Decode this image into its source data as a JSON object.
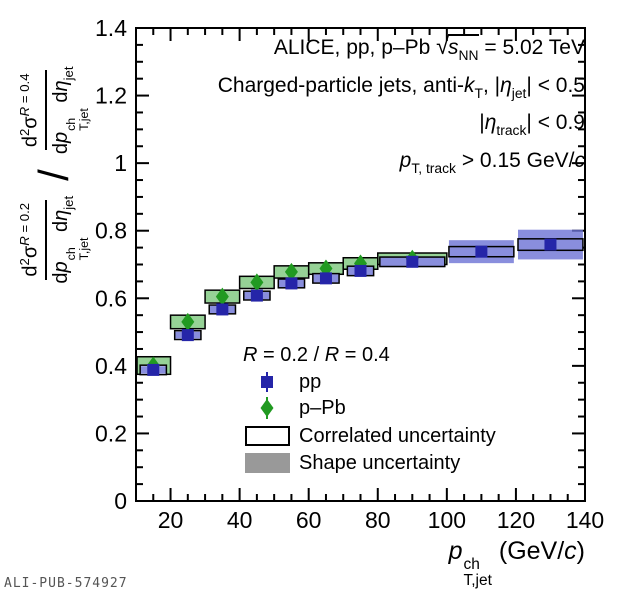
{
  "header": {
    "line1": {
      "pre": "ALICE, pp, p–Pb ",
      "sqrt": "√",
      "s": "s",
      "s_sub": "NN",
      "post": " = 5.02 TeV"
    },
    "line2": {
      "pre": "Charged-particle jets, anti-",
      "k": "k",
      "k_sub": "T",
      "mid": ", |",
      "eta": "η",
      "eta_sub": "jet",
      "post": "| < 0.5"
    },
    "line3": {
      "pre": "|",
      "eta": "η",
      "eta_sub": "track",
      "post": "| < 0.9"
    },
    "line4": {
      "p": "p",
      "p_sub": "T, track",
      "post": " > 0.15 GeV/",
      "c": "c"
    }
  },
  "legend": {
    "header": {
      "r1": "R",
      "mid1": " = 0.2 / ",
      "r2": "R",
      "mid2": " = 0.4"
    },
    "items": {
      "pp": "pp",
      "ppb": "p–Pb",
      "corr": "Correlated uncertainty",
      "shape": "Shape uncertainty"
    },
    "shape_swatch_color": "#999999"
  },
  "axes": {
    "x_label": {
      "p": "p",
      "sup": "ch",
      "sub": "T,jet",
      "unit_pre": " (GeV/",
      "c": "c",
      "unit_post": ")"
    },
    "y_label": {
      "slash": "/",
      "frac_r02": {
        "num_d": "d",
        "num_exp": "2",
        "num_sig": "σ",
        "num_sup_R": "R",
        "num_sup_rest": " = 0.2",
        "den_d": "d",
        "den_p": "p",
        "den_sup": "ch",
        "den_sub": "T,jet",
        "den_sp": " d",
        "den_eta": "η",
        "den_eta_sub": "jet"
      },
      "frac_r04": {
        "num_d": "d",
        "num_exp": "2",
        "num_sig": "σ",
        "num_sup_R": "R",
        "num_sup_rest": " = 0.4",
        "den_d": "d",
        "den_p": "p",
        "den_sup": "ch",
        "den_sub": "T,jet",
        "den_sp": " d",
        "den_eta": "η",
        "den_eta_sub": "jet"
      }
    }
  },
  "footer": {
    "id": "ALI-PUB-574927"
  },
  "chart_data": {
    "type": "scatter",
    "title": "ALICE, pp, p–Pb √s_NN = 5.02 TeV",
    "annotations": [
      "Charged-particle jets, anti-k_T, |η_jet| < 0.5",
      "|η_track| < 0.9",
      "p_T,track > 0.15 GeV/c"
    ],
    "legend_note": "R = 0.2 / R = 0.4",
    "xlabel": "p_T,jet^ch (GeV/c)",
    "ylabel": "(d²σ^{R=0.2}/dp^ch_T,jet dη_jet) / (d²σ^{R=0.4}/dp^ch_T,jet dη_jet)",
    "xlim": [
      10,
      140
    ],
    "ylim": [
      0,
      1.4
    ],
    "x_tick_values": [
      20,
      40,
      60,
      80,
      100,
      120,
      140
    ],
    "x_tick_labels": [
      "20",
      "40",
      "60",
      "80",
      "100",
      "120",
      "140"
    ],
    "x_minor_step": 5,
    "y_tick_values": [
      0,
      0.2,
      0.4,
      0.6,
      0.8,
      1.0,
      1.2,
      1.4
    ],
    "y_tick_labels": [
      "0",
      "0.2",
      "0.4",
      "0.6",
      "0.8",
      "1",
      "1.2",
      "1.4"
    ],
    "y_minor_step": 0.05,
    "grid": false,
    "frame_color": "#000000",
    "uncertainty_legend": [
      "Correlated uncertainty",
      "Shape uncertainty"
    ],
    "series": [
      {
        "name": "p–Pb",
        "marker": "diamond",
        "color": "#219a21",
        "shape_fill": "rgba(124,199,124,0.8)",
        "points": [
          {
            "x": 15,
            "xlo": 10.3,
            "xhi": 20,
            "y": 0.401,
            "stat": 0.006,
            "corr": 0.026,
            "shape": 0.027
          },
          {
            "x": 25,
            "xlo": 20,
            "xhi": 30,
            "y": 0.53,
            "stat": 0.006,
            "corr": 0.02,
            "shape": 0.018
          },
          {
            "x": 35,
            "xlo": 30,
            "xhi": 40,
            "y": 0.605,
            "stat": 0.007,
            "corr": 0.019,
            "shape": 0.017
          },
          {
            "x": 45,
            "xlo": 40,
            "xhi": 50,
            "y": 0.647,
            "stat": 0.008,
            "corr": 0.018,
            "shape": 0.016
          },
          {
            "x": 55,
            "xlo": 50,
            "xhi": 60,
            "y": 0.678,
            "stat": 0.009,
            "corr": 0.018,
            "shape": 0.016
          },
          {
            "x": 65,
            "xlo": 60,
            "xhi": 70,
            "y": 0.688,
            "stat": 0.01,
            "corr": 0.017,
            "shape": 0.016
          },
          {
            "x": 75,
            "xlo": 70,
            "xhi": 80,
            "y": 0.703,
            "stat": 0.012,
            "corr": 0.017,
            "shape": 0.016
          },
          {
            "x": 90,
            "xlo": 80,
            "xhi": 100,
            "y": 0.717,
            "stat": 0.013,
            "corr": 0.017,
            "shape": 0.016
          }
        ]
      },
      {
        "name": "pp",
        "marker": "square",
        "color": "#2525a8",
        "shape_fill": "rgba(108,114,212,0.8)",
        "points": [
          {
            "x": 15,
            "xlo": 11.2,
            "xhi": 18.8,
            "y": 0.388,
            "stat": 0.004,
            "corr": 0.014,
            "shape": 0.011
          },
          {
            "x": 25,
            "xlo": 21.2,
            "xhi": 28.8,
            "y": 0.491,
            "stat": 0.004,
            "corr": 0.013,
            "shape": 0.01
          },
          {
            "x": 35,
            "xlo": 31.2,
            "xhi": 38.8,
            "y": 0.567,
            "stat": 0.005,
            "corr": 0.013,
            "shape": 0.011
          },
          {
            "x": 45,
            "xlo": 41.2,
            "xhi": 48.8,
            "y": 0.608,
            "stat": 0.005,
            "corr": 0.013,
            "shape": 0.011
          },
          {
            "x": 55,
            "xlo": 51.2,
            "xhi": 58.8,
            "y": 0.644,
            "stat": 0.006,
            "corr": 0.013,
            "shape": 0.012
          },
          {
            "x": 65,
            "xlo": 61.2,
            "xhi": 68.8,
            "y": 0.659,
            "stat": 0.007,
            "corr": 0.014,
            "shape": 0.012
          },
          {
            "x": 75,
            "xlo": 71.2,
            "xhi": 78.8,
            "y": 0.681,
            "stat": 0.009,
            "corr": 0.014,
            "shape": 0.013
          },
          {
            "x": 90,
            "xlo": 80.6,
            "xhi": 99.4,
            "y": 0.708,
            "stat": 0.009,
            "corr": 0.014,
            "shape": 0.016
          },
          {
            "x": 110,
            "xlo": 100.6,
            "xhi": 119.4,
            "y": 0.738,
            "stat": 0.013,
            "corr": 0.015,
            "shape": 0.034
          },
          {
            "x": 130,
            "xlo": 120.6,
            "xhi": 139.4,
            "y": 0.759,
            "stat": 0.016,
            "corr": 0.017,
            "shape": 0.044
          }
        ]
      }
    ]
  }
}
